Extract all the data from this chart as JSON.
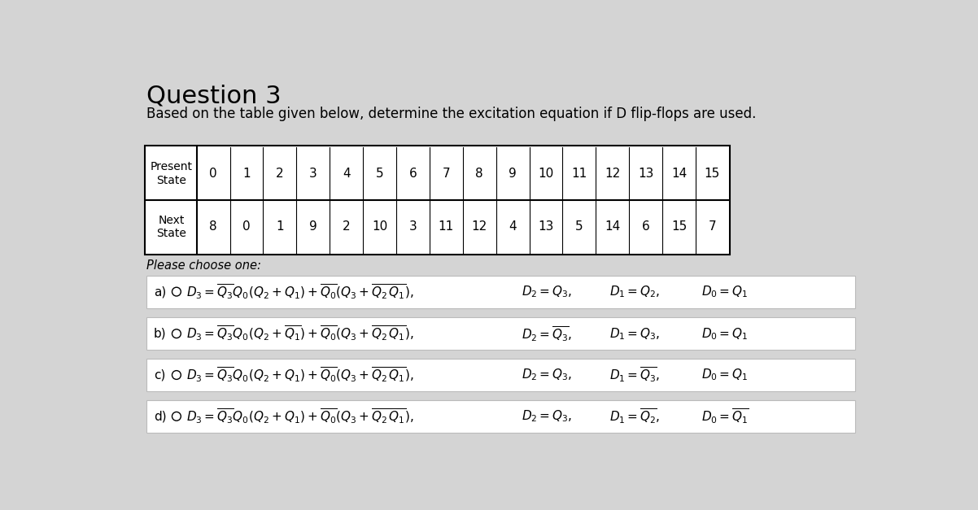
{
  "title": "Question 3",
  "subtitle": "Based on the table given below, determine the excitation equation if D flip-flops are used.",
  "background_color": "#d4d4d4",
  "table_bg": "#ffffff",
  "present_state_row": [
    0,
    1,
    2,
    3,
    4,
    5,
    6,
    7,
    8,
    9,
    10,
    11,
    12,
    13,
    14,
    15
  ],
  "next_state_row": [
    8,
    0,
    1,
    9,
    2,
    10,
    3,
    11,
    12,
    4,
    13,
    5,
    14,
    6,
    15,
    7
  ],
  "please_choose": "Please choose one:",
  "options": [
    {
      "label": "a)",
      "d3": "$D_3 = \\overline{Q_3}Q_0(Q_2 + Q_1) + \\overline{Q_0}(Q_3 + \\overline{Q_2}\\,\\overline{Q_1}),$",
      "d2": "$D_2 = Q_3,$",
      "d1": "$D_1 = Q_2,$",
      "d0": "$D_0 = Q_1$"
    },
    {
      "label": "b)",
      "d3": "$D_3 = \\overline{Q_3}Q_0(Q_2 + \\overline{Q_1}) + \\overline{Q_0}(Q_3 + \\overline{Q_2}\\,\\overline{Q_1}),$",
      "d2": "$D_2 = \\overline{Q_3},$",
      "d1": "$D_1 = Q_3,$",
      "d0": "$D_0 = Q_1$"
    },
    {
      "label": "c)",
      "d3": "$D_3 = \\overline{Q_3}Q_0(Q_2 + Q_1) + \\overline{Q_0}(Q_3 + \\overline{Q_2}\\,\\overline{Q_1}),$",
      "d2": "$D_2 = Q_3,$",
      "d1": "$D_1 = \\overline{Q_3},$",
      "d0": "$D_0 = Q_1$"
    },
    {
      "label": "d)",
      "d3": "$D_3 = \\overline{Q_3}Q_0(Q_2 + Q_1) + \\overline{Q_0}(Q_3 + \\overline{Q_2}\\,\\overline{Q_1}),$",
      "d2": "$D_2 = Q_3,$",
      "d1": "$D_1 = \\overline{Q_2},$",
      "d0": "$D_0 = \\overline{Q_1}$"
    }
  ]
}
